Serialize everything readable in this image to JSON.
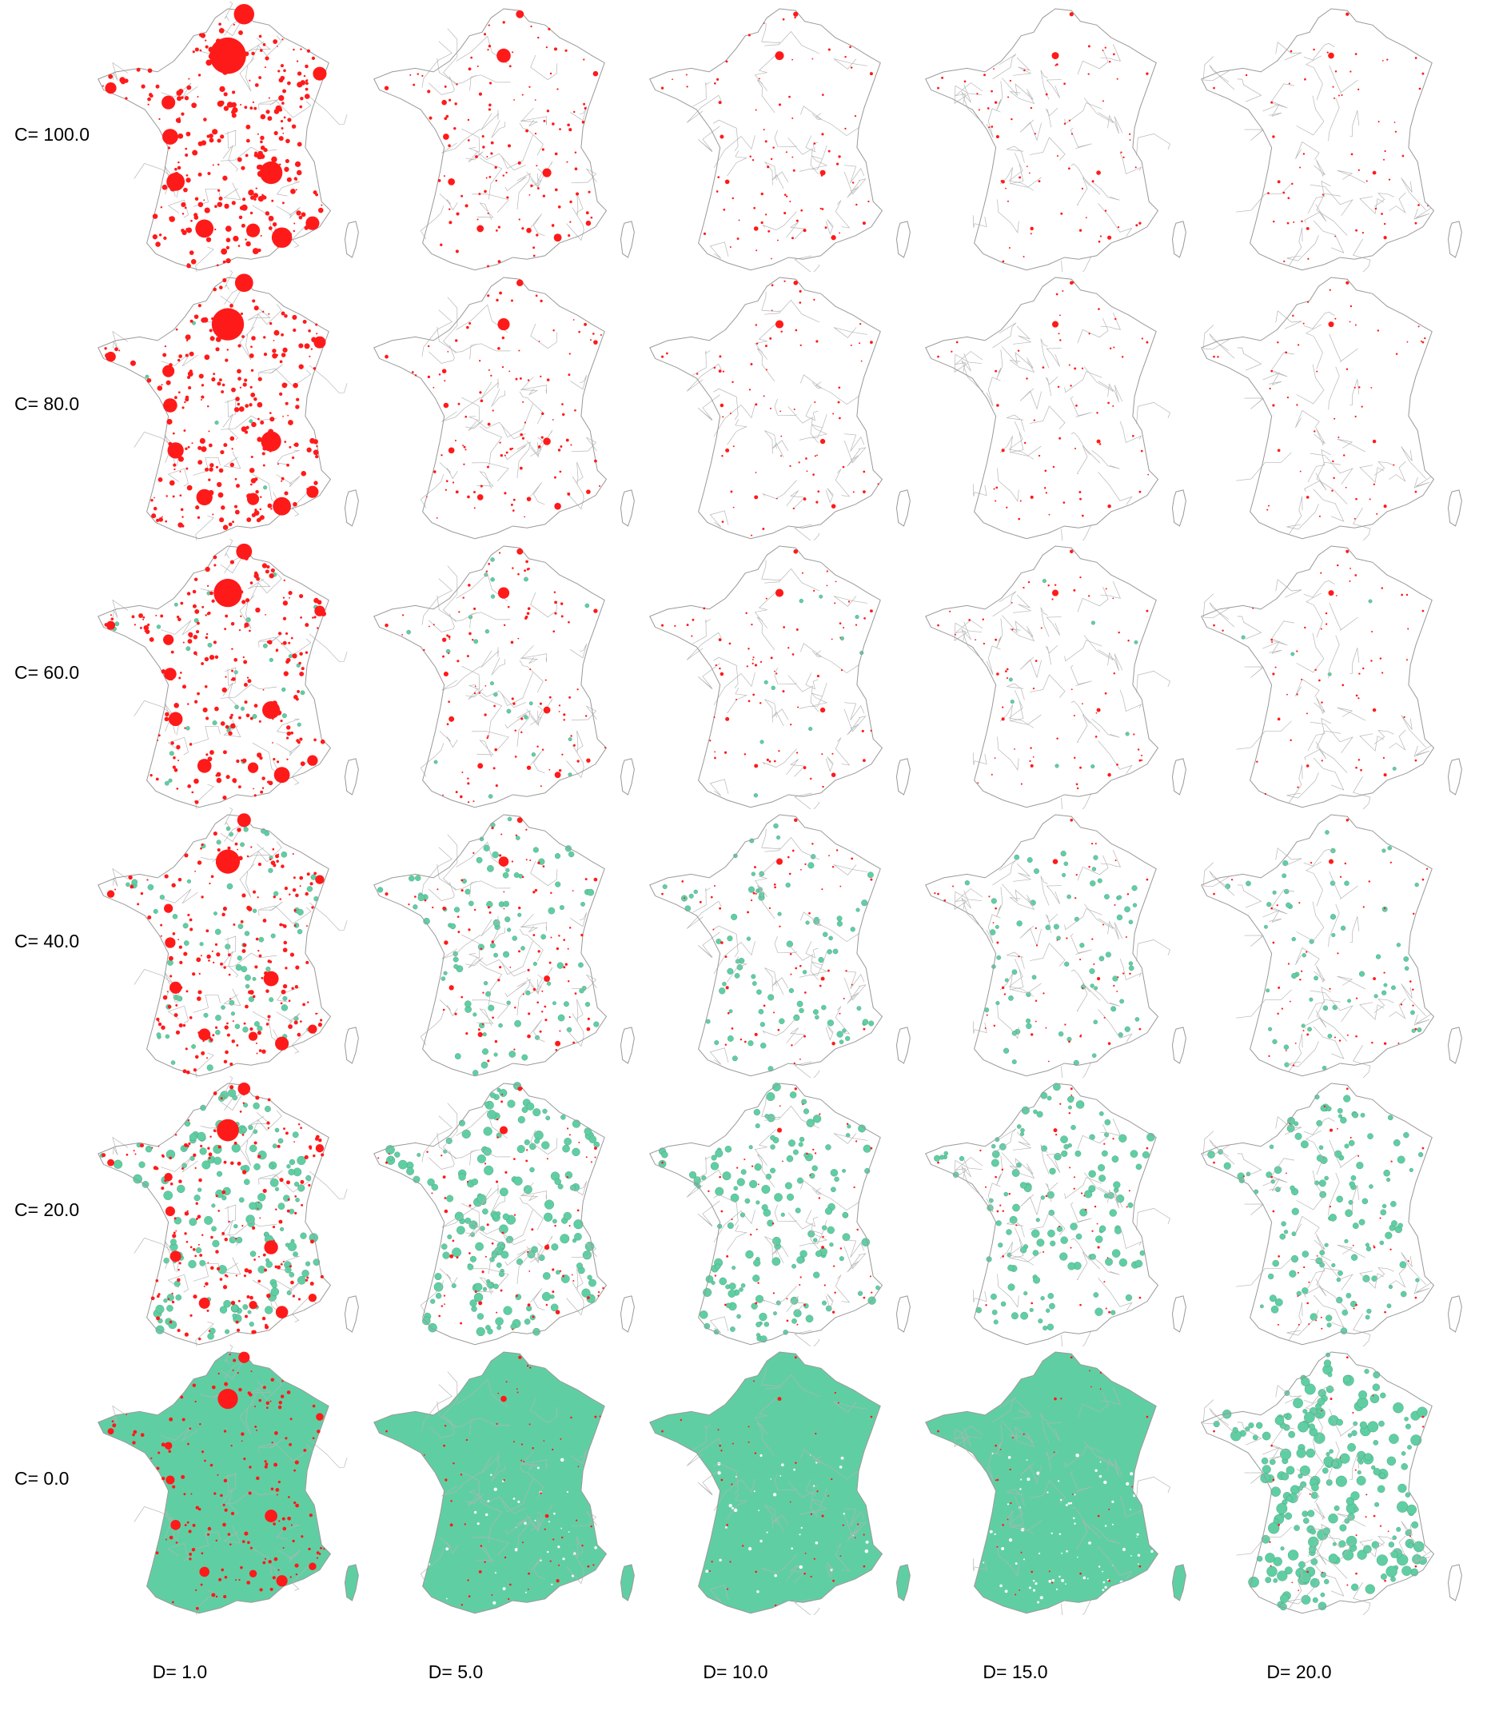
{
  "figure": {
    "rows": [
      {
        "label": "C= 100.0",
        "C": 100.0
      },
      {
        "label": "C= 80.0",
        "C": 80.0
      },
      {
        "label": "C= 60.0",
        "C": 60.0
      },
      {
        "label": "C= 40.0",
        "C": 40.0
      },
      {
        "label": "C= 20.0",
        "C": 20.0
      },
      {
        "label": "C= 0.0",
        "C": 0.0
      }
    ],
    "columns": [
      {
        "label": "D= 1.0",
        "D": 1.0
      },
      {
        "label": "D= 5.0",
        "D": 5.0
      },
      {
        "label": "D= 10.0",
        "D": 10.0
      },
      {
        "label": "D= 15.0",
        "D": 15.0
      },
      {
        "label": "D= 20.0",
        "D": 20.0
      }
    ],
    "colors": {
      "urban": "#ff1a1a",
      "periurban": "#5fcfa3",
      "boundary": "#b4b4b4",
      "periurban_edge": "#4a8a74",
      "background": "#ffffff"
    },
    "maps": [
      [
        {
          "urban": 0.9,
          "green": 0.0
        },
        {
          "urban": 0.35,
          "green": 0.0
        },
        {
          "urban": 0.22,
          "green": 0.0
        },
        {
          "urban": 0.18,
          "green": 0.0
        },
        {
          "urban": 0.15,
          "green": 0.0
        }
      ],
      [
        {
          "urban": 0.8,
          "green": 0.02
        },
        {
          "urban": 0.3,
          "green": 0.0
        },
        {
          "urban": 0.2,
          "green": 0.0
        },
        {
          "urban": 0.16,
          "green": 0.0
        },
        {
          "urban": 0.14,
          "green": 0.0
        }
      ],
      [
        {
          "urban": 0.7,
          "green": 0.12
        },
        {
          "urban": 0.28,
          "green": 0.08
        },
        {
          "urban": 0.2,
          "green": 0.04
        },
        {
          "urban": 0.16,
          "green": 0.03
        },
        {
          "urban": 0.14,
          "green": 0.02
        }
      ],
      [
        {
          "urban": 0.6,
          "green": 0.3
        },
        {
          "urban": 0.25,
          "green": 0.35
        },
        {
          "urban": 0.16,
          "green": 0.3
        },
        {
          "urban": 0.13,
          "green": 0.25
        },
        {
          "urban": 0.12,
          "green": 0.2
        }
      ],
      [
        {
          "urban": 0.55,
          "green": 0.6
        },
        {
          "urban": 0.2,
          "green": 0.65
        },
        {
          "urban": 0.12,
          "green": 0.55
        },
        {
          "urban": 0.1,
          "green": 0.5
        },
        {
          "urban": 0.08,
          "green": 0.45
        }
      ],
      [
        {
          "urban": 0.5,
          "green": 1.0
        },
        {
          "urban": 0.15,
          "green": 0.95
        },
        {
          "urban": 0.1,
          "green": 0.95
        },
        {
          "urban": 0.07,
          "green": 0.9
        },
        {
          "urban": 0.06,
          "green": 0.85
        }
      ]
    ]
  }
}
